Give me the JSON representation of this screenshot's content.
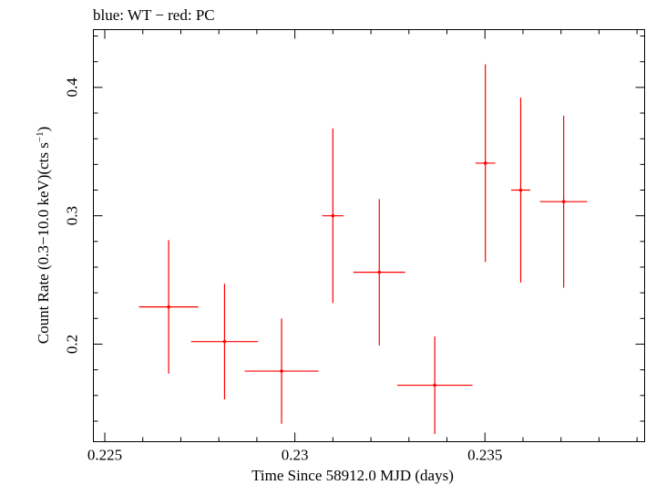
{
  "chart_data": {
    "type": "scatter",
    "title": "blue: WT − red: PC",
    "xlabel": "Time Since 58912.0 MJD (days)",
    "ylabel": "Count Rate (0.3−10.0 keV)(cts s",
    "ylabel_sup": "−1",
    "ylabel_end": ")",
    "xlim": [
      0.2247,
      0.2392
    ],
    "ylim": [
      0.124,
      0.445
    ],
    "x_ticks": [
      {
        "value": 0.225,
        "label": "0.225"
      },
      {
        "value": 0.23,
        "label": "0.23"
      },
      {
        "value": 0.235,
        "label": "0.235"
      }
    ],
    "y_ticks": [
      {
        "value": 0.2,
        "label": "0.2"
      },
      {
        "value": 0.3,
        "label": "0.3"
      },
      {
        "value": 0.4,
        "label": "0.4"
      }
    ],
    "series": [
      {
        "color": "#ff0000",
        "points": [
          {
            "x": 0.22668,
            "xerr": 0.00078,
            "y": 0.229,
            "yerr_low": 0.052,
            "yerr_high": 0.052
          },
          {
            "x": 0.22815,
            "xerr": 0.00088,
            "y": 0.202,
            "yerr_low": 0.045,
            "yerr_high": 0.045
          },
          {
            "x": 0.22965,
            "xerr": 0.00097,
            "y": 0.179,
            "yerr_low": 0.041,
            "yerr_high": 0.041
          },
          {
            "x": 0.231,
            "xerr": 0.00028,
            "y": 0.3,
            "yerr_low": 0.068,
            "yerr_high": 0.068
          },
          {
            "x": 0.23222,
            "xerr": 0.00068,
            "y": 0.256,
            "yerr_low": 0.057,
            "yerr_high": 0.057
          },
          {
            "x": 0.23368,
            "xerr": 0.00099,
            "y": 0.168,
            "yerr_low": 0.038,
            "yerr_high": 0.038
          },
          {
            "x": 0.23501,
            "xerr": 0.00026,
            "y": 0.341,
            "yerr_low": 0.077,
            "yerr_high": 0.077
          },
          {
            "x": 0.23594,
            "xerr": 0.00025,
            "y": 0.32,
            "yerr_low": 0.072,
            "yerr_high": 0.072
          },
          {
            "x": 0.23707,
            "xerr": 0.00062,
            "y": 0.311,
            "yerr_low": 0.067,
            "yerr_high": 0.067
          }
        ]
      }
    ],
    "grid": false,
    "legend": "none"
  }
}
